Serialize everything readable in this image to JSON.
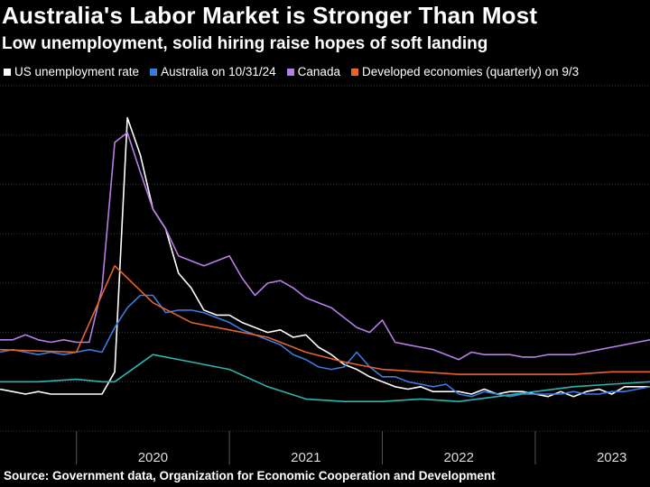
{
  "header": {
    "title": "Australia's Labor Market is Stronger Than Most",
    "subtitle": "Low unemployment, solid hiring raise hopes of soft landing"
  },
  "footer": {
    "source": "Source: Government data, Organization for Economic Cooperation and Development"
  },
  "colors": {
    "background": "#000000",
    "grid": "#3a3a3a",
    "us": "#ffffff",
    "australia": "#3a7be0",
    "canada": "#b87ee8",
    "developed": "#e8632c",
    "teal": "#2fb3b3"
  },
  "chart_data": {
    "type": "line",
    "title": "Australia's Labor Market is Stronger Than Most",
    "subtitle": "Low unemployment, solid hiring raise hopes of soft landing",
    "x_tick_labels": [
      "2020",
      "2021",
      "2022",
      "2023"
    ],
    "xlim": [
      2019.5,
      2023.75
    ],
    "ylim": [
      2,
      16
    ],
    "grid": true,
    "legend": "top",
    "series": [
      {
        "name": "US unemployment rate",
        "color_key": "us",
        "x": [
          2019.5,
          2019.583,
          2019.667,
          2019.75,
          2019.833,
          2019.917,
          2020.0,
          2020.083,
          2020.167,
          2020.25,
          2020.333,
          2020.417,
          2020.5,
          2020.583,
          2020.667,
          2020.75,
          2020.833,
          2020.917,
          2021.0,
          2021.083,
          2021.167,
          2021.25,
          2021.333,
          2021.417,
          2021.5,
          2021.583,
          2021.667,
          2021.75,
          2021.833,
          2021.917,
          2022.0,
          2022.083,
          2022.167,
          2022.25,
          2022.333,
          2022.417,
          2022.5,
          2022.583,
          2022.667,
          2022.75,
          2022.833,
          2022.917,
          2023.0,
          2023.083,
          2023.167,
          2023.25,
          2023.333,
          2023.417,
          2023.5,
          2023.583,
          2023.667,
          2023.75
        ],
        "values": [
          3.7,
          3.6,
          3.5,
          3.6,
          3.5,
          3.5,
          3.5,
          3.5,
          3.5,
          4.4,
          14.7,
          13.2,
          11.0,
          10.2,
          8.4,
          7.8,
          6.9,
          6.7,
          6.7,
          6.4,
          6.2,
          6.0,
          6.1,
          5.8,
          5.9,
          5.4,
          5.1,
          4.7,
          4.5,
          4.2,
          4.0,
          3.8,
          3.7,
          3.8,
          3.6,
          3.6,
          3.6,
          3.5,
          3.7,
          3.5,
          3.6,
          3.6,
          3.5,
          3.4,
          3.6,
          3.4,
          3.6,
          3.7,
          3.5,
          3.8,
          3.8,
          3.8
        ]
      },
      {
        "name": "Australia on 10/31/24",
        "color_key": "australia",
        "x": [
          2019.5,
          2019.583,
          2019.667,
          2019.75,
          2019.833,
          2019.917,
          2020.0,
          2020.083,
          2020.167,
          2020.25,
          2020.333,
          2020.417,
          2020.5,
          2020.583,
          2020.667,
          2020.75,
          2020.833,
          2020.917,
          2021.0,
          2021.083,
          2021.167,
          2021.25,
          2021.333,
          2021.417,
          2021.5,
          2021.583,
          2021.667,
          2021.75,
          2021.833,
          2021.917,
          2022.0,
          2022.083,
          2022.167,
          2022.25,
          2022.333,
          2022.417,
          2022.5,
          2022.583,
          2022.667,
          2022.75,
          2022.833,
          2022.917,
          2023.0,
          2023.083,
          2023.167,
          2023.25,
          2023.333,
          2023.417,
          2023.5,
          2023.583,
          2023.667,
          2023.75
        ],
        "values": [
          5.2,
          5.3,
          5.2,
          5.1,
          5.2,
          5.1,
          5.2,
          5.3,
          5.2,
          6.2,
          7.0,
          7.5,
          7.5,
          6.8,
          6.9,
          6.9,
          6.8,
          6.6,
          6.4,
          6.1,
          5.9,
          5.7,
          5.5,
          5.1,
          4.9,
          4.6,
          4.5,
          4.6,
          5.2,
          4.6,
          4.2,
          4.2,
          4.0,
          3.9,
          3.8,
          3.9,
          3.5,
          3.4,
          3.6,
          3.5,
          3.4,
          3.5,
          3.5,
          3.5,
          3.5,
          3.6,
          3.5,
          3.5,
          3.6,
          3.6,
          3.7,
          3.8
        ]
      },
      {
        "name": "Canada",
        "color_key": "canada",
        "x": [
          2019.5,
          2019.583,
          2019.667,
          2019.75,
          2019.833,
          2019.917,
          2020.0,
          2020.083,
          2020.167,
          2020.25,
          2020.333,
          2020.417,
          2020.5,
          2020.583,
          2020.667,
          2020.75,
          2020.833,
          2020.917,
          2021.0,
          2021.083,
          2021.167,
          2021.25,
          2021.333,
          2021.417,
          2021.5,
          2021.583,
          2021.667,
          2021.75,
          2021.833,
          2021.917,
          2022.0,
          2022.083,
          2022.167,
          2022.25,
          2022.333,
          2022.417,
          2022.5,
          2022.583,
          2022.667,
          2022.75,
          2022.833,
          2022.917,
          2023.0,
          2023.083,
          2023.167,
          2023.25,
          2023.333,
          2023.417,
          2023.5,
          2023.583,
          2023.667,
          2023.75
        ],
        "values": [
          5.7,
          5.7,
          5.9,
          5.7,
          5.6,
          5.7,
          5.6,
          5.6,
          7.8,
          13.7,
          14.1,
          12.5,
          11.0,
          10.2,
          9.1,
          8.9,
          8.7,
          8.9,
          9.1,
          8.2,
          7.5,
          8.0,
          8.1,
          7.8,
          7.4,
          7.2,
          7.0,
          6.6,
          6.2,
          6.0,
          6.5,
          5.6,
          5.5,
          5.4,
          5.3,
          5.1,
          4.9,
          5.2,
          5.1,
          5.1,
          5.1,
          5.0,
          5.0,
          5.1,
          5.1,
          5.1,
          5.2,
          5.3,
          5.4,
          5.5,
          5.6,
          5.7
        ]
      },
      {
        "name": "Developed economies (quarterly) on 9/3",
        "color_key": "developed",
        "x": [
          2019.5,
          2020.0,
          2020.25,
          2020.5,
          2020.75,
          2021.0,
          2021.25,
          2021.5,
          2021.75,
          2022.0,
          2022.25,
          2022.5,
          2022.75,
          2023.0,
          2023.25,
          2023.5,
          2023.75
        ],
        "values": [
          5.3,
          5.2,
          8.7,
          7.2,
          6.4,
          6.1,
          5.8,
          5.2,
          4.8,
          4.5,
          4.4,
          4.3,
          4.3,
          4.3,
          4.3,
          4.4,
          4.4
        ]
      },
      {
        "name": "teal",
        "color_key": "teal",
        "x": [
          2019.5,
          2019.75,
          2020.0,
          2020.167,
          2020.25,
          2020.5,
          2020.75,
          2021.0,
          2021.25,
          2021.5,
          2021.75,
          2022.0,
          2022.25,
          2022.5,
          2022.75,
          2023.0,
          2023.25,
          2023.5,
          2023.75
        ],
        "values": [
          4.0,
          4.0,
          4.1,
          4.0,
          4.0,
          5.1,
          4.8,
          4.5,
          3.8,
          3.3,
          3.2,
          3.2,
          3.3,
          3.2,
          3.4,
          3.6,
          3.8,
          3.9,
          4.0
        ]
      }
    ]
  }
}
